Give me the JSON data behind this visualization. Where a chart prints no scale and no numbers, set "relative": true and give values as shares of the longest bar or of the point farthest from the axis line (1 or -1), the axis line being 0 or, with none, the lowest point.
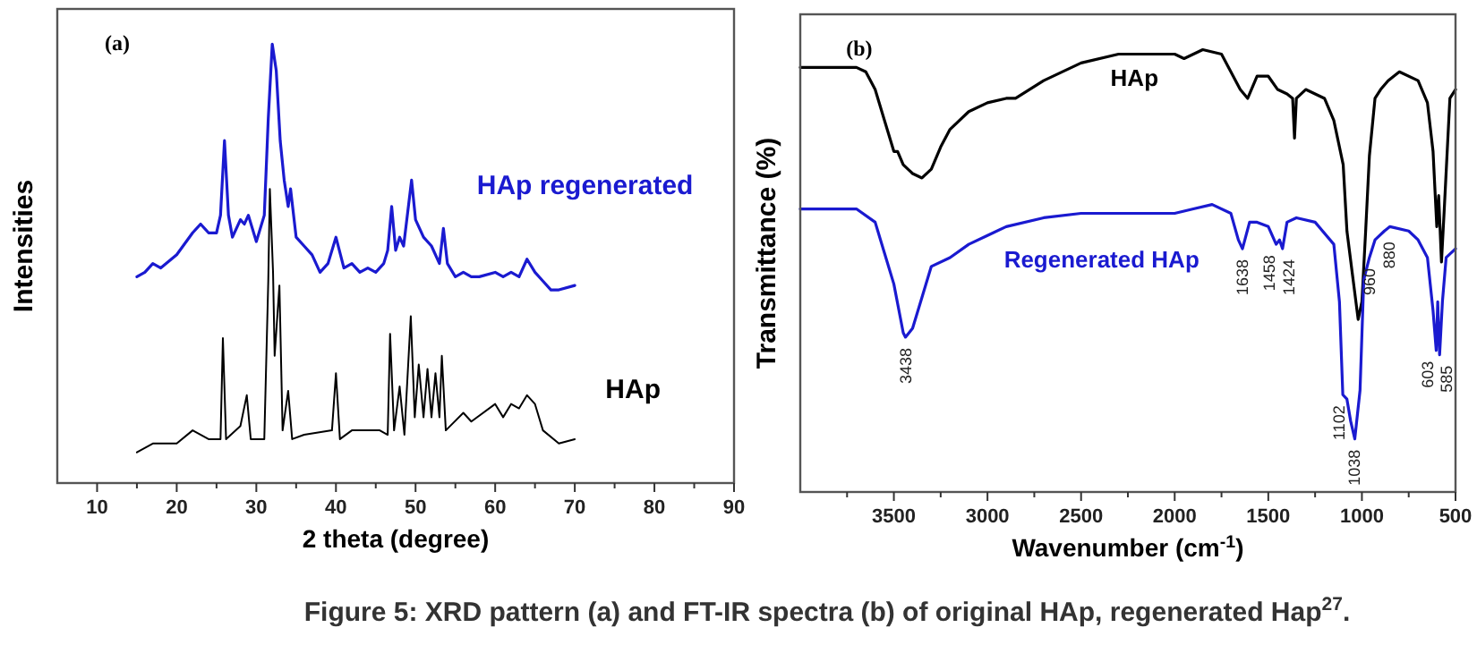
{
  "chart_data": [
    {
      "type": "line",
      "relative": true,
      "xlabel": "2 theta (degree)",
      "ylabel": "Intensities",
      "xlim": [
        5,
        90
      ],
      "xticks": [
        10,
        {
          "value": 15,
          "label": null
        },
        20,
        {
          "value": 25,
          "label": null
        },
        30,
        {
          "value": 35,
          "label": null
        },
        40,
        {
          "value": 45,
          "label": null
        },
        50,
        {
          "value": 55,
          "label": null
        },
        60,
        {
          "value": 65,
          "label": null
        },
        70,
        {
          "value": 75,
          "label": null
        },
        80,
        {
          "value": 85,
          "label": null
        },
        90
      ],
      "legend": false,
      "annotations": [
        "(a)",
        "Figure 5: XRD pattern (a) and FT-IR spectra (b) of original HAp, regenerated Hap$^{27}$."
      ],
      "series": [
        {
          "name": "HAp regenerated",
          "color": "#1a1ad0",
          "x": [
            15,
            16,
            17,
            18,
            20,
            22,
            23,
            24,
            25,
            25.5,
            26,
            26.5,
            27,
            28,
            28.5,
            29,
            30,
            31,
            31.5,
            32,
            32.5,
            33,
            33.5,
            34,
            34.3,
            35,
            36,
            37,
            38,
            39,
            40,
            41,
            42,
            43,
            44,
            45,
            46,
            46.5,
            47,
            47.5,
            48,
            48.5,
            49.5,
            50,
            51,
            52,
            53,
            53.5,
            54,
            55,
            56,
            57,
            58,
            60,
            61,
            62,
            63,
            64,
            65,
            66,
            67,
            68,
            70
          ],
          "values": [
            0.47,
            0.48,
            0.5,
            0.49,
            0.52,
            0.57,
            0.59,
            0.57,
            0.57,
            0.61,
            0.78,
            0.61,
            0.56,
            0.6,
            0.59,
            0.61,
            0.55,
            0.61,
            0.83,
            1,
            0.94,
            0.78,
            0.69,
            0.63,
            0.67,
            0.56,
            0.54,
            0.52,
            0.48,
            0.5,
            0.56,
            0.49,
            0.5,
            0.48,
            0.49,
            0.48,
            0.5,
            0.53,
            0.63,
            0.53,
            0.56,
            0.54,
            0.69,
            0.6,
            0.56,
            0.54,
            0.5,
            0.58,
            0.5,
            0.47,
            0.48,
            0.47,
            0.47,
            0.48,
            0.47,
            0.48,
            0.47,
            0.51,
            0.48,
            0.46,
            0.44,
            0.44,
            0.45
          ]
        },
        {
          "name": "HAp",
          "color": "#000000",
          "x": [
            15,
            17,
            20,
            22,
            24,
            25.5,
            25.8,
            26.2,
            28,
            28.8,
            29.3,
            31,
            31.5,
            31.7,
            32.1,
            32.3,
            32.9,
            33.3,
            34,
            34.5,
            36,
            39.5,
            40,
            40.5,
            42,
            44,
            45.5,
            46.5,
            46.8,
            47.3,
            48,
            48.6,
            49.4,
            49.9,
            50.4,
            51,
            51.5,
            52,
            52.5,
            53,
            53.3,
            53.8,
            56,
            57,
            60,
            61,
            62,
            63,
            64,
            65,
            66,
            68,
            70
          ],
          "values": [
            0.07,
            0.09,
            0.09,
            0.12,
            0.1,
            0.1,
            0.33,
            0.1,
            0.13,
            0.2,
            0.1,
            0.1,
            0.46,
            0.67,
            0.48,
            0.29,
            0.45,
            0.12,
            0.21,
            0.1,
            0.11,
            0.12,
            0.25,
            0.1,
            0.12,
            0.12,
            0.12,
            0.11,
            0.34,
            0.12,
            0.22,
            0.11,
            0.38,
            0.15,
            0.27,
            0.15,
            0.26,
            0.15,
            0.25,
            0.15,
            0.29,
            0.12,
            0.16,
            0.14,
            0.18,
            0.15,
            0.18,
            0.17,
            0.2,
            0.18,
            0.12,
            0.09,
            0.1
          ]
        }
      ]
    },
    {
      "type": "line",
      "relative": true,
      "xlabel": "Wavenumber (cm$^{-1}$)",
      "ylabel": "Transmittance (%)",
      "xlim": [
        4000,
        500
      ],
      "xticks": [
        {
          "value": 3750,
          "label": null
        },
        3500,
        {
          "value": 3250,
          "label": null
        },
        3000,
        {
          "value": 2750,
          "label": null
        },
        2500,
        {
          "value": 2250,
          "label": null
        },
        2000,
        {
          "value": 1750,
          "label": null
        },
        1500,
        {
          "value": 1250,
          "label": null
        },
        1000,
        {
          "value": 750,
          "label": null
        },
        500
      ],
      "legend": false,
      "annotations": [
        "(b)",
        {
          "text": "3438",
          "x": 3438,
          "y": 0.35
        },
        {
          "text": "1638",
          "x": 1638,
          "y": 0.55
        },
        {
          "text": "1458",
          "x": 1458,
          "y": 0.56
        },
        {
          "text": "1424",
          "x": 1424,
          "y": 0.55
        },
        {
          "text": "1102",
          "x": 1102,
          "y": 0.22
        },
        {
          "text": "1038",
          "x": 1038,
          "y": 0.12
        },
        {
          "text": "960",
          "x": 960,
          "y": 0.53
        },
        {
          "text": "880",
          "x": 880,
          "y": 0.59
        },
        {
          "text": "603",
          "x": 603,
          "y": 0.32
        },
        {
          "text": "585",
          "x": 585,
          "y": 0.31
        }
      ],
      "series": [
        {
          "name": "HAp",
          "color": "#000000",
          "x": [
            4000,
            3700,
            3650,
            3600,
            3550,
            3500,
            3480,
            3450,
            3400,
            3350,
            3300,
            3250,
            3200,
            3100,
            3000,
            2900,
            2850,
            2700,
            2500,
            2300,
            2000,
            1950,
            1900,
            1850,
            1750,
            1700,
            1650,
            1610,
            1560,
            1500,
            1450,
            1400,
            1370,
            1360,
            1350,
            1300,
            1200,
            1150,
            1100,
            1080,
            1050,
            1020,
            1000,
            980,
            960,
            930,
            900,
            860,
            800,
            700,
            650,
            620,
            600,
            590,
            575,
            560,
            530,
            500
          ],
          "values": [
            0.96,
            0.96,
            0.95,
            0.91,
            0.84,
            0.77,
            0.77,
            0.74,
            0.72,
            0.71,
            0.73,
            0.78,
            0.82,
            0.86,
            0.88,
            0.89,
            0.89,
            0.93,
            0.97,
            0.99,
            0.99,
            0.98,
            0.99,
            1,
            0.99,
            0.95,
            0.91,
            0.89,
            0.94,
            0.94,
            0.91,
            0.9,
            0.89,
            0.8,
            0.89,
            0.91,
            0.89,
            0.84,
            0.74,
            0.59,
            0.49,
            0.39,
            0.43,
            0.59,
            0.76,
            0.89,
            0.91,
            0.93,
            0.95,
            0.93,
            0.88,
            0.77,
            0.6,
            0.67,
            0.52,
            0.64,
            0.89,
            0.91
          ]
        },
        {
          "name": "Regenerated HAp",
          "color": "#1a1ad0",
          "x": [
            4000,
            3700,
            3600,
            3550,
            3500,
            3450,
            3438,
            3400,
            3350,
            3300,
            3200,
            3100,
            3000,
            2900,
            2700,
            2500,
            2300,
            2000,
            1900,
            1800,
            1700,
            1660,
            1638,
            1600,
            1560,
            1500,
            1458,
            1440,
            1424,
            1400,
            1350,
            1250,
            1150,
            1120,
            1102,
            1080,
            1060,
            1038,
            1010,
            990,
            960,
            930,
            880,
            850,
            750,
            700,
            650,
            620,
            603,
            595,
            585,
            570,
            550,
            500
          ],
          "values": [
            0.64,
            0.64,
            0.61,
            0.54,
            0.47,
            0.36,
            0.35,
            0.37,
            0.44,
            0.51,
            0.53,
            0.56,
            0.58,
            0.6,
            0.62,
            0.63,
            0.63,
            0.63,
            0.64,
            0.65,
            0.63,
            0.57,
            0.55,
            0.61,
            0.61,
            0.6,
            0.56,
            0.57,
            0.55,
            0.61,
            0.62,
            0.61,
            0.56,
            0.43,
            0.22,
            0.21,
            0.16,
            0.12,
            0.23,
            0.48,
            0.53,
            0.57,
            0.59,
            0.6,
            0.59,
            0.57,
            0.53,
            0.41,
            0.32,
            0.43,
            0.31,
            0.43,
            0.53,
            0.55
          ]
        }
      ]
    }
  ]
}
